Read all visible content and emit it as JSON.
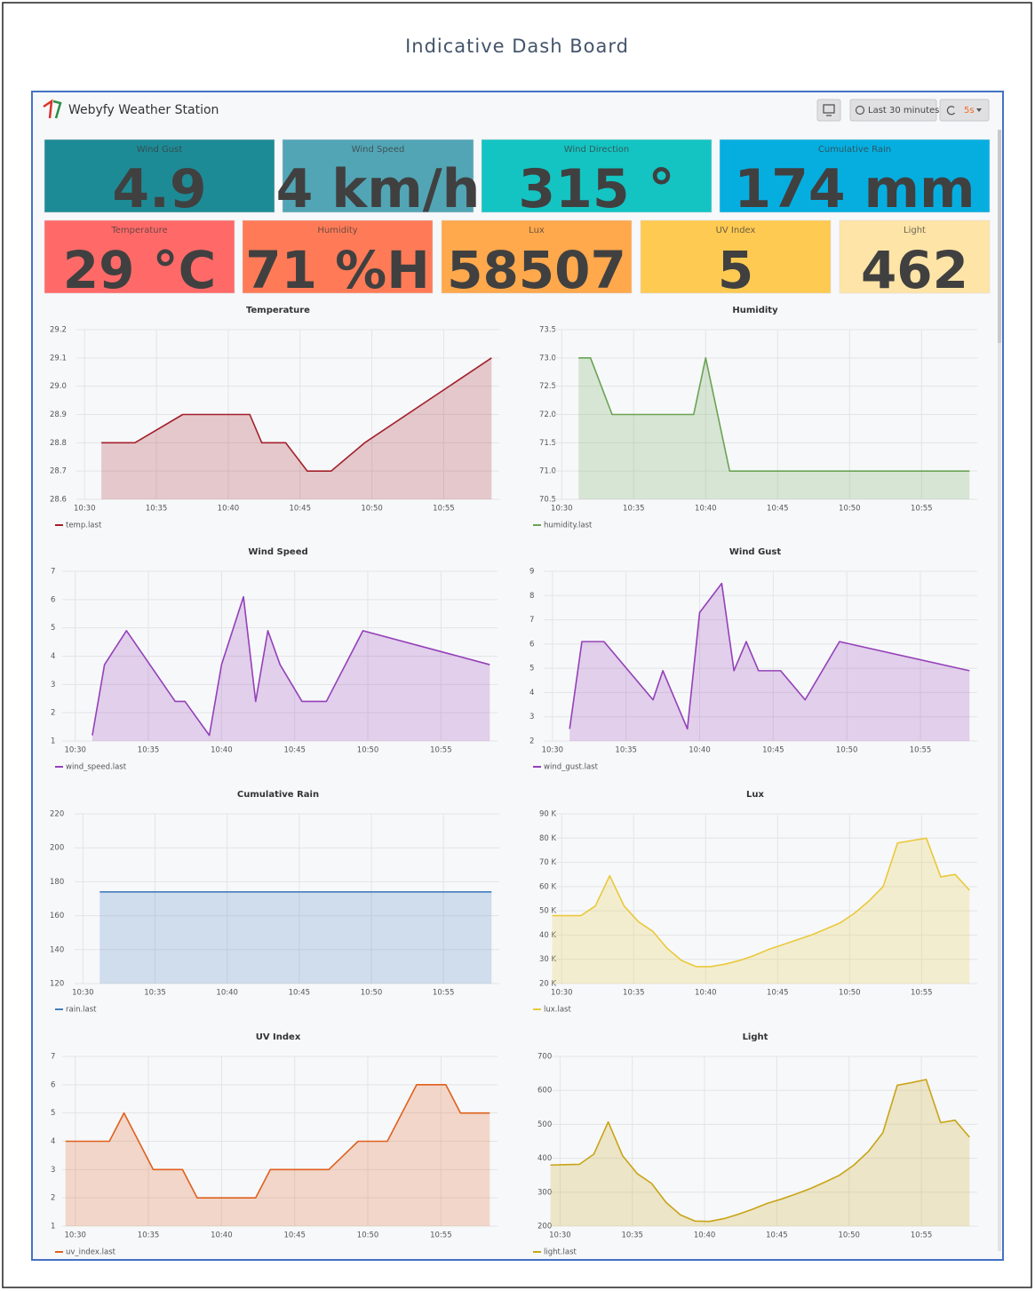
{
  "header": {
    "title": "Indicative Dash Board",
    "dashboard": "Webyfy Weather Station",
    "time_range": "Last 30 minutes",
    "refresh": "5s"
  },
  "stats": [
    {
      "title": "Wind Gust",
      "value": "4.9",
      "color": "#1d8b96"
    },
    {
      "title": "Wind Speed",
      "value": "4 km/h",
      "color": "#52a5b5"
    },
    {
      "title": "Wind Direction",
      "value": "315 °",
      "color": "#14c4c2"
    },
    {
      "title": "Cumulative Rain",
      "value": "174 mm",
      "color": "#06aee0"
    },
    {
      "title": "Temperature",
      "value": "29 °C",
      "color": "#ff6a68"
    },
    {
      "title": "Humidity",
      "value": "71 %H",
      "color": "#ff7b57"
    },
    {
      "title": "Lux",
      "value": "58507",
      "color": "#ffa84c"
    },
    {
      "title": "UV Index",
      "value": "5",
      "color": "#ffca52"
    },
    {
      "title": "Light",
      "value": "462",
      "color": "#ffe4a7"
    }
  ],
  "chart_data": [
    {
      "type": "line",
      "title": "Temperature",
      "grid": true,
      "legend": "bottom-left",
      "x": [
        "10:31:10",
        "10:33:30",
        "10:36:50",
        "10:41:30",
        "10:42:20",
        "10:44:00",
        "10:45:30",
        "10:47:10",
        "10:49:30",
        "10:58:20"
      ],
      "series": [
        {
          "name": "temp.last",
          "color": "#a3202a",
          "values": [
            28.8,
            28.8,
            28.9,
            28.9,
            28.8,
            28.8,
            28.7,
            28.7,
            28.8,
            29.1
          ]
        }
      ],
      "xlim": [
        "10:28:30",
        "10:58:30"
      ],
      "xticks": [
        "10:30",
        "10:35",
        "10:40",
        "10:45",
        "10:50",
        "10:55"
      ],
      "ylim": [
        28.6,
        29.2
      ],
      "yticks": [
        28.6,
        28.7,
        28.8,
        28.9,
        {
          "value": 29,
          "label": "29.0"
        },
        29.1,
        29.2
      ]
    },
    {
      "type": "line",
      "title": "Humidity",
      "grid": true,
      "legend": "bottom-left",
      "x": [
        "10:31:10",
        "10:32:00",
        "10:33:30",
        "10:39:10",
        "10:40:00",
        "10:41:40",
        "10:58:20"
      ],
      "series": [
        {
          "name": "humidity.last",
          "color": "#6aa354",
          "values": [
            73,
            73,
            72,
            72,
            73,
            71,
            71
          ]
        }
      ],
      "xlim": [
        "10:28:30",
        "10:58:30"
      ],
      "xticks": [
        "10:30",
        "10:35",
        "10:40",
        "10:45",
        "10:50",
        "10:55"
      ],
      "ylim": [
        70.5,
        73.5
      ],
      "yticks": [
        70.5,
        {
          "value": 71,
          "label": "71.0"
        },
        71.5,
        {
          "value": 72,
          "label": "72.0"
        },
        72.5,
        {
          "value": 73,
          "label": "73.0"
        },
        73.5
      ]
    },
    {
      "type": "line",
      "title": "Wind Speed",
      "grid": true,
      "legend": "bottom-left",
      "x": [
        "10:31:10",
        "10:32:00",
        "10:33:30",
        "10:36:50",
        "10:37:30",
        "10:39:10",
        "10:40:00",
        "10:41:30",
        "10:42:20",
        "10:43:10",
        "10:44:00",
        "10:45:30",
        "10:47:10",
        "10:49:40",
        "10:58:20"
      ],
      "series": [
        {
          "name": "wind_speed.last",
          "color": "#9440b8",
          "values": [
            1.2,
            3.7,
            4.9,
            2.4,
            2.4,
            1.2,
            3.7,
            6.1,
            2.4,
            4.9,
            3.7,
            2.4,
            2.4,
            4.9,
            3.7
          ]
        }
      ],
      "xlim": [
        "10:28:30",
        "10:58:30"
      ],
      "xticks": [
        "10:30",
        "10:35",
        "10:40",
        "10:45",
        "10:50",
        "10:55"
      ],
      "ylim": [
        1,
        7
      ],
      "yticks": [
        1,
        2,
        3,
        4,
        5,
        6,
        7
      ]
    },
    {
      "type": "line",
      "title": "Wind Gust",
      "grid": true,
      "legend": "bottom-left",
      "x": [
        "10:31:10",
        "10:32:00",
        "10:33:30",
        "10:36:50",
        "10:37:30",
        "10:39:10",
        "10:40:00",
        "10:41:30",
        "10:42:20",
        "10:43:10",
        "10:44:00",
        "10:45:30",
        "10:47:10",
        "10:49:30",
        "10:58:20"
      ],
      "series": [
        {
          "name": "wind_gust.last",
          "color": "#9440b8",
          "values": [
            2.5,
            6.1,
            6.1,
            3.7,
            4.9,
            2.5,
            7.3,
            8.5,
            4.9,
            6.1,
            4.9,
            4.9,
            3.7,
            6.1,
            4.9
          ]
        }
      ],
      "xlim": [
        "10:28:30",
        "10:58:30"
      ],
      "xticks": [
        "10:30",
        "10:35",
        "10:40",
        "10:45",
        "10:50",
        "10:55"
      ],
      "ylim": [
        2,
        9
      ],
      "yticks": [
        2,
        3,
        4,
        5,
        6,
        7,
        8,
        9
      ]
    },
    {
      "type": "line",
      "title": "Cumulative Rain",
      "grid": true,
      "legend": "bottom-left",
      "x": [
        "10:31:10",
        "10:58:20"
      ],
      "series": [
        {
          "name": "rain.last",
          "color": "#447ebc",
          "values": [
            174,
            174
          ]
        }
      ],
      "xlim": [
        "10:28:30",
        "10:58:30"
      ],
      "xticks": [
        "10:30",
        "10:35",
        "10:40",
        "10:45",
        "10:50",
        "10:55"
      ],
      "ylim": [
        120,
        220
      ],
      "yticks": [
        120,
        140,
        160,
        180,
        200,
        220
      ]
    },
    {
      "type": "line",
      "title": "Lux",
      "grid": true,
      "legend": "bottom-left",
      "x": [
        "10:29:20",
        "10:30:20",
        "10:31:20",
        "10:32:20",
        "10:33:20",
        "10:34:20",
        "10:35:20",
        "10:36:20",
        "10:37:20",
        "10:38:20",
        "10:39:20",
        "10:40:20",
        "10:41:20",
        "10:42:20",
        "10:43:20",
        "10:44:20",
        "10:45:20",
        "10:46:20",
        "10:47:20",
        "10:48:20",
        "10:49:20",
        "10:50:20",
        "10:51:20",
        "10:52:20",
        "10:53:20",
        "10:54:20",
        "10:55:20",
        "10:56:20",
        "10:57:20",
        "10:58:20"
      ],
      "series": [
        {
          "name": "lux.last",
          "color": "#eac93a",
          "values": [
            48000,
            48000,
            48000,
            52000,
            64500,
            52000,
            45500,
            41500,
            34500,
            29500,
            27000,
            27000,
            28000,
            29500,
            31500,
            34000,
            36000,
            38000,
            40000,
            42500,
            45000,
            49000,
            54000,
            60000,
            78000,
            79000,
            80000,
            64000,
            65000,
            58507
          ]
        }
      ],
      "xlim": [
        "10:28:30",
        "10:58:30"
      ],
      "xticks": [
        "10:30",
        "10:35",
        "10:40",
        "10:45",
        "10:50",
        "10:55"
      ],
      "ylim": [
        20000,
        90000
      ],
      "yticks": [
        {
          "value": 20000,
          "label": "20 K"
        },
        {
          "value": 30000,
          "label": "30 K"
        },
        {
          "value": 40000,
          "label": "40 K"
        },
        {
          "value": 50000,
          "label": "50 K"
        },
        {
          "value": 60000,
          "label": "60 K"
        },
        {
          "value": 70000,
          "label": "70 K"
        },
        {
          "value": 80000,
          "label": "80 K"
        },
        {
          "value": 90000,
          "label": "90 K"
        }
      ]
    },
    {
      "type": "line",
      "title": "UV Index",
      "grid": true,
      "legend": "bottom-left",
      "x": [
        "10:29:20",
        "10:32:20",
        "10:33:20",
        "10:35:20",
        "10:37:20",
        "10:38:20",
        "10:42:20",
        "10:43:20",
        "10:47:20",
        "10:49:20",
        "10:51:20",
        "10:53:20",
        "10:55:20",
        "10:56:20",
        "10:58:20"
      ],
      "series": [
        {
          "name": "uv_index.last",
          "color": "#e0601d",
          "values": [
            4,
            4,
            5,
            3,
            3,
            2,
            2,
            3,
            3,
            4,
            4,
            6,
            6,
            5,
            5
          ]
        }
      ],
      "xlim": [
        "10:28:30",
        "10:58:30"
      ],
      "xticks": [
        "10:30",
        "10:35",
        "10:40",
        "10:45",
        "10:50",
        "10:55"
      ],
      "ylim": [
        1,
        7
      ],
      "yticks": [
        1,
        2,
        3,
        4,
        5,
        6,
        7
      ]
    },
    {
      "type": "line",
      "title": "Light",
      "grid": true,
      "legend": "bottom-left",
      "x": [
        "10:29:20",
        "10:30:20",
        "10:31:20",
        "10:32:20",
        "10:33:20",
        "10:34:20",
        "10:35:20",
        "10:36:20",
        "10:37:20",
        "10:38:20",
        "10:39:20",
        "10:40:20",
        "10:41:20",
        "10:42:20",
        "10:43:20",
        "10:44:20",
        "10:45:20",
        "10:46:20",
        "10:47:20",
        "10:48:20",
        "10:49:20",
        "10:50:20",
        "10:51:20",
        "10:52:20",
        "10:53:20",
        "10:54:20",
        "10:55:20",
        "10:56:20",
        "10:57:20",
        "10:58:20"
      ],
      "series": [
        {
          "name": "light.last",
          "color": "#c9a416",
          "values": [
            380,
            381,
            382,
            412,
            507,
            407,
            355,
            326,
            270,
            233,
            215,
            214,
            222,
            235,
            250,
            267,
            280,
            295,
            311,
            330,
            350,
            380,
            420,
            475,
            615,
            623,
            632,
            505,
            512,
            462
          ]
        }
      ],
      "xlim": [
        "10:28:30",
        "10:58:30"
      ],
      "xticks": [
        "10:30",
        "10:35",
        "10:40",
        "10:45",
        "10:50",
        "10:55"
      ],
      "ylim": [
        200,
        700
      ],
      "yticks": [
        200,
        300,
        400,
        500,
        600,
        700
      ]
    }
  ]
}
